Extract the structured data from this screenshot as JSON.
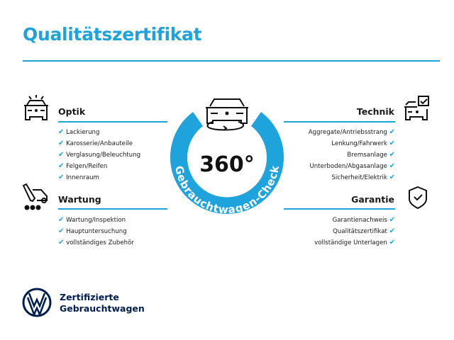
{
  "title": "Qualitätszertifikat",
  "badge": {
    "value": "360°",
    "label": "Gebrauchtwagen-Check"
  },
  "accent": "#1ea3dc",
  "brand_color": "#001e50",
  "sections": {
    "optik": {
      "heading": "Optik",
      "icon": "car-lights-icon",
      "items": [
        "Lackierung",
        "Karosserie/Anbauteile",
        "Verglasung/Beleuchtung",
        "Felgen/Reifen",
        "Innenraum"
      ]
    },
    "wartung": {
      "heading": "Wartung",
      "icon": "service-tool-car-icon",
      "items": [
        "Wartung/Inspektion",
        "Hauptuntersuchung",
        "vollständiges Zubehör"
      ]
    },
    "technik": {
      "heading": "Technik",
      "icon": "car-checkbox-icon",
      "items": [
        "Aggregate/Antriebsstrang",
        "Lenkung/Fahrwerk",
        "Bremsanlage",
        "Unterboden/Abgasanlage",
        "Sicherheit/Elektrik"
      ]
    },
    "garantie": {
      "heading": "Garantie",
      "icon": "shield-check-icon",
      "items": [
        "Garantienachweis",
        "Qualitätszertifikat",
        "vollständige Unterlagen"
      ]
    }
  },
  "check_mark": "✔",
  "footer": {
    "line1": "Zertifizierte",
    "line2": "Gebrauchtwagen"
  }
}
